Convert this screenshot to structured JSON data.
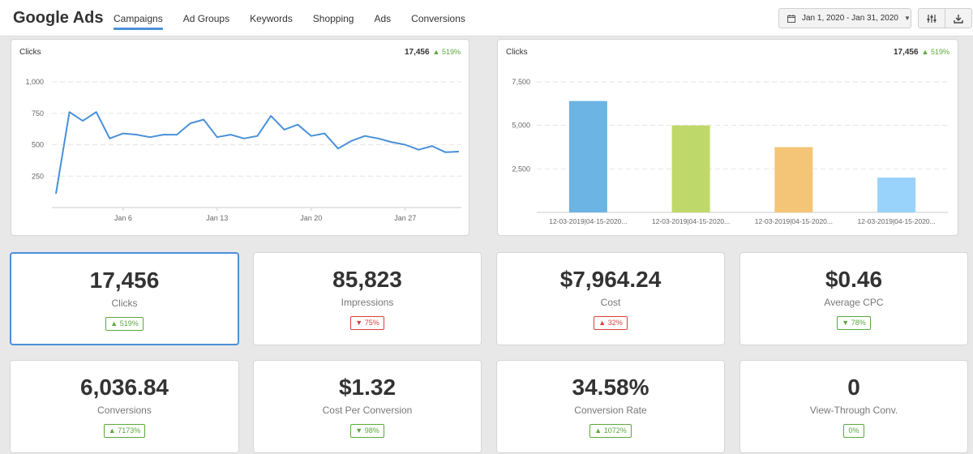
{
  "app": {
    "title": "Google Ads"
  },
  "nav": [
    {
      "label": "Campaigns",
      "active": true
    },
    {
      "label": "Ad Groups"
    },
    {
      "label": "Keywords"
    },
    {
      "label": "Shopping"
    },
    {
      "label": "Ads"
    },
    {
      "label": "Conversions"
    }
  ],
  "toolbar": {
    "date_range": "Jan 1, 2020 - Jan 31, 2020",
    "date_icon": "calendar-icon",
    "settings_icon": "sliders-icon",
    "download_icon": "download-icon"
  },
  "charts": [
    {
      "title": "Clicks",
      "total": "17,456",
      "change": "519%",
      "direction": "up"
    },
    {
      "title": "Clicks",
      "total": "17,456",
      "change": "519%",
      "direction": "up"
    }
  ],
  "chart_data": [
    {
      "type": "line",
      "title": "Clicks",
      "xlabel": "",
      "ylabel": "",
      "ylim": [
        0,
        1000
      ],
      "yticks": [
        "250",
        "500",
        "750",
        "1,000"
      ],
      "xticks": [
        "Jan 6",
        "Jan 13",
        "Jan 20",
        "Jan 27"
      ],
      "grid": true,
      "color": "#4a90d9",
      "x": [
        1,
        2,
        3,
        4,
        5,
        6,
        7,
        8,
        9,
        10,
        11,
        12,
        13,
        14,
        15,
        16,
        17,
        18,
        19,
        20,
        21,
        22,
        23,
        24,
        25,
        26,
        27,
        28,
        29,
        30,
        31
      ],
      "values": [
        110,
        760,
        690,
        760,
        550,
        590,
        580,
        560,
        580,
        580,
        670,
        700,
        560,
        580,
        550,
        570,
        730,
        620,
        660,
        570,
        590,
        470,
        530,
        570,
        550,
        520,
        500,
        460,
        490,
        440,
        445
      ]
    },
    {
      "type": "bar",
      "title": "Clicks",
      "xlabel": "",
      "ylabel": "",
      "ylim": [
        0,
        7500
      ],
      "yticks": [
        "2,500",
        "5,000",
        "7,500"
      ],
      "grid": true,
      "categories": [
        "12-03-2019|04-15-2020...",
        "12-03-2019|04-15-2020...",
        "12-03-2019|04-15-2020...",
        "12-03-2019|04-15-2020..."
      ],
      "values": [
        6400,
        5000,
        3750,
        2000
      ],
      "colors": [
        "#6cb4e3",
        "#bfd86a",
        "#f4c576",
        "#99d2fa"
      ]
    }
  ],
  "metrics": [
    {
      "value": "17,456",
      "label": "Clicks",
      "change": "519%",
      "direction": "up",
      "selected": true
    },
    {
      "value": "85,823",
      "label": "Impressions",
      "change": "75%",
      "direction": "down"
    },
    {
      "value": "$7,964.24",
      "label": "Cost",
      "change": "32%",
      "direction": "up",
      "badge_color": "#d94040"
    },
    {
      "value": "$0.46",
      "label": "Average CPC",
      "change": "78%",
      "direction": "down",
      "badge_color": "#5aa83c"
    },
    {
      "value": "6,036.84",
      "label": "Conversions",
      "change": "7173%",
      "direction": "up"
    },
    {
      "value": "$1.32",
      "label": "Cost Per Conversion",
      "change": "98%",
      "direction": "down",
      "badge_color": "#5aa83c"
    },
    {
      "value": "34.58%",
      "label": "Conversion Rate",
      "change": "1072%",
      "direction": "up"
    },
    {
      "value": "0",
      "label": "View-Through Conv.",
      "change": "0%",
      "direction": "none"
    }
  ]
}
